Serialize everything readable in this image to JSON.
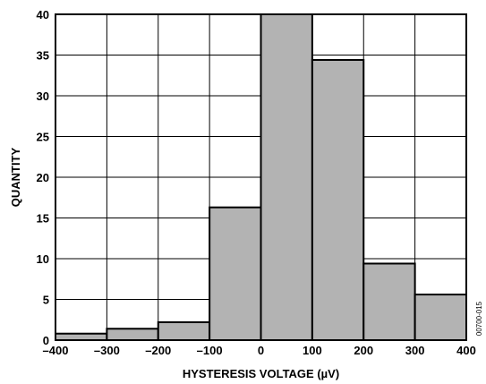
{
  "chart_data": {
    "type": "bar",
    "bins": [
      {
        "x0": -400,
        "x1": -300,
        "value": 0.8
      },
      {
        "x0": -300,
        "x1": -200,
        "value": 1.4
      },
      {
        "x0": -200,
        "x1": -100,
        "value": 2.2
      },
      {
        "x0": -100,
        "x1": 0,
        "value": 16.3
      },
      {
        "x0": 0,
        "x1": 100,
        "value": 40.0
      },
      {
        "x0": 100,
        "x1": 200,
        "value": 34.4
      },
      {
        "x0": 200,
        "x1": 300,
        "value": 9.4
      },
      {
        "x0": 300,
        "x1": 400,
        "value": 5.6
      }
    ],
    "xlabel": "HYSTERESIS VOLTAGE (µV)",
    "ylabel": "QUANTITY",
    "xlim": [
      -400,
      400
    ],
    "ylim": [
      0,
      40
    ],
    "xticks": [
      -400,
      -300,
      -200,
      -100,
      0,
      100,
      200,
      300,
      400
    ],
    "xtick_labels": [
      "–400",
      "–300",
      "–200",
      "–100",
      "0",
      "100",
      "200",
      "300",
      "400"
    ],
    "yticks": [
      0,
      5,
      10,
      15,
      20,
      25,
      30,
      35,
      40
    ],
    "grid": true,
    "bar_color": "#b3b3b3",
    "figure_id": "00700-015"
  }
}
